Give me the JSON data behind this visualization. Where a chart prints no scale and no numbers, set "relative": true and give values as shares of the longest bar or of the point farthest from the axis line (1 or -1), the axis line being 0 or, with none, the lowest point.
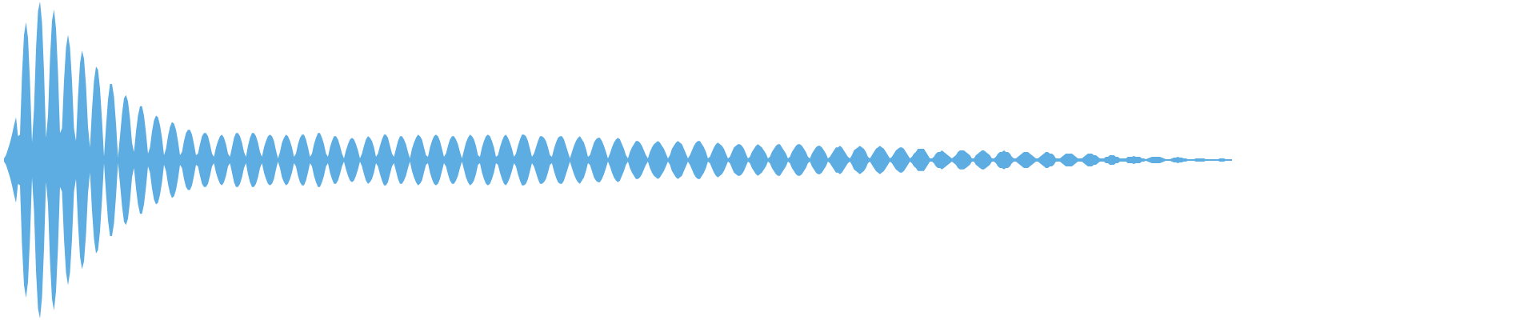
{
  "chart_data": {
    "type": "area",
    "relative": true,
    "tick_labels": false,
    "categories": [
      null,
      null,
      null,
      null,
      null,
      null,
      null,
      null,
      null,
      null,
      null,
      null,
      null,
      null,
      null,
      null,
      null,
      null,
      null,
      null,
      null,
      null,
      null,
      null,
      null,
      null,
      null,
      null,
      null,
      null,
      null,
      null,
      null,
      null,
      null,
      null,
      null,
      null,
      null,
      null,
      null,
      null,
      null,
      null,
      null,
      null,
      null,
      null,
      null,
      null,
      null,
      null,
      null,
      null,
      null,
      null,
      null,
      null,
      null,
      null,
      null,
      null,
      null,
      null,
      null,
      null,
      null,
      null,
      null,
      null,
      null,
      null,
      null,
      null,
      null,
      null,
      null,
      null,
      null,
      null,
      null,
      null,
      null,
      null,
      null,
      null,
      null,
      null,
      null,
      null,
      null,
      null,
      null,
      null,
      null,
      null,
      null,
      null,
      null,
      null,
      null,
      null,
      null,
      null,
      null,
      null,
      null,
      null,
      null,
      null,
      null,
      null,
      null,
      null,
      null,
      null,
      null,
      null,
      null,
      null,
      null,
      null,
      null,
      null,
      null,
      null,
      null,
      null,
      null,
      null,
      null,
      null,
      null,
      null,
      null,
      null,
      null,
      null,
      null,
      null,
      null,
      null,
      null,
      null,
      null,
      null,
      null,
      null,
      null,
      null,
      null,
      null,
      null,
      null,
      null,
      null,
      null,
      null,
      null,
      null,
      null,
      null,
      null,
      null,
      null,
      null,
      null,
      null,
      null,
      null,
      null,
      null,
      null,
      null,
      null,
      null,
      null,
      null,
      null,
      null,
      null,
      null,
      null,
      null,
      null,
      null,
      null,
      null,
      null,
      null,
      null,
      null,
      null,
      null,
      null,
      null,
      null,
      null,
      null,
      null,
      null,
      null,
      null,
      null,
      null,
      null,
      null,
      null,
      null,
      null,
      null,
      null,
      null,
      null,
      null,
      null,
      null,
      null,
      null,
      null,
      null,
      null,
      null,
      null,
      null,
      null,
      null,
      null,
      null,
      null,
      null,
      null,
      null,
      null,
      null,
      null,
      null,
      null,
      null,
      null,
      null,
      null,
      null,
      null,
      null,
      null,
      null,
      null,
      null,
      null,
      null,
      null,
      null,
      null,
      null,
      null,
      null,
      null,
      null,
      null,
      null,
      null,
      null,
      null,
      null,
      null,
      null,
      null,
      null,
      null,
      null,
      null,
      null,
      null,
      null,
      null,
      null,
      null,
      null,
      null,
      null,
      null,
      null,
      null,
      null,
      null,
      null,
      null,
      null,
      null,
      null,
      null,
      null,
      null,
      null,
      null,
      null,
      null,
      null,
      null,
      null,
      null,
      null,
      null,
      null,
      null,
      null,
      null,
      null,
      null,
      null,
      null,
      null,
      null,
      null,
      null,
      null,
      null,
      null,
      null,
      null,
      null,
      null,
      null,
      null,
      null,
      null,
      null,
      null,
      null,
      null,
      null,
      null,
      null,
      null,
      null,
      null,
      null,
      null,
      null,
      null,
      null,
      null,
      null,
      null,
      null,
      null,
      null,
      null,
      null,
      null,
      null,
      null,
      null,
      null,
      null,
      null,
      null,
      null,
      null,
      null,
      null,
      null,
      null,
      null,
      null,
      null,
      null,
      null,
      null,
      null,
      null,
      null,
      null,
      null,
      null,
      null,
      null,
      null,
      null,
      null,
      null,
      null,
      null,
      null,
      null,
      null,
      null,
      null,
      null,
      null,
      null,
      null,
      null,
      null,
      null,
      null,
      null,
      null,
      null,
      null,
      null,
      null,
      null,
      null,
      null,
      null,
      null,
      null,
      null,
      null,
      null,
      null,
      null,
      null,
      null,
      null,
      null,
      null,
      null,
      null,
      null,
      null,
      null,
      null,
      null,
      null,
      null,
      null,
      null,
      null,
      null,
      null,
      null,
      null,
      null,
      null,
      null,
      null,
      null,
      null,
      null,
      null,
      null,
      null,
      null,
      null,
      null,
      null,
      null,
      null,
      null,
      null,
      null,
      null,
      null,
      null,
      null,
      null,
      null,
      null,
      null,
      null,
      null,
      null,
      null,
      null,
      null,
      null,
      null,
      null,
      null,
      null,
      null,
      null,
      null,
      null,
      null,
      null,
      null,
      null,
      null,
      null,
      null,
      null,
      null,
      null,
      null,
      null,
      null,
      null,
      null,
      null,
      null,
      null,
      null,
      null,
      null,
      null,
      null,
      null,
      null,
      null,
      null,
      null,
      null,
      null,
      null,
      null,
      null,
      null,
      null,
      null,
      null,
      null,
      null,
      null,
      null,
      null,
      null,
      null,
      null,
      null,
      null,
      null,
      null,
      null,
      null,
      null,
      null,
      null,
      null,
      null,
      null,
      null,
      null,
      null,
      null,
      null,
      null,
      null,
      null,
      null,
      null,
      null,
      null,
      null,
      null,
      null,
      null,
      null,
      null,
      null,
      null,
      null,
      null,
      null,
      null,
      null,
      null,
      null,
      null,
      null,
      null,
      null,
      null,
      null,
      null,
      null,
      null,
      null,
      null,
      null,
      null,
      null,
      null,
      null,
      null,
      null,
      null,
      null,
      null,
      null,
      null,
      null,
      null,
      null,
      null,
      null,
      null,
      null,
      null,
      null,
      null,
      null,
      null,
      null,
      null,
      null,
      null,
      null,
      null,
      null,
      null,
      null,
      null,
      null,
      null,
      null,
      null,
      null,
      null,
      null,
      null,
      null
    ],
    "series": [
      {
        "color": "#5dade2",
        "values": [
          0.01,
          0.03,
          0.07,
          0.11,
          0.16,
          0.22,
          0.27,
          0.15,
          0.16,
          0.54,
          0.79,
          0.87,
          0.77,
          0.49,
          0.11,
          0.32,
          0.7,
          0.94,
          1,
          0.87,
          0.56,
          0.14,
          0.28,
          0.64,
          0.88,
          0.95,
          0.83,
          0.55,
          0.17,
          0.2,
          0.5,
          0.71,
          0.79,
          0.71,
          0.5,
          0.2,
          0.12,
          0.4,
          0.61,
          0.69,
          0.64,
          0.47,
          0.21,
          0.08,
          0.32,
          0.5,
          0.59,
          0.57,
          0.45,
          0.25,
          0.02,
          0.21,
          0.38,
          0.48,
          0.48,
          0.4,
          0.23,
          0.02,
          0.15,
          0.29,
          0.39,
          0.41,
          0.37,
          0.26,
          0.11,
          0.05,
          0.18,
          0.28,
          0.34,
          0.34,
          0.28,
          0.17,
          0.04,
          0.08,
          0.18,
          0.25,
          0.28,
          0.27,
          0.22,
          0.14,
          0.03,
          0.07,
          0.15,
          0.21,
          0.24,
          0.23,
          0.19,
          0.12,
          0.03,
          0.05,
          0.12,
          0.17,
          0.19,
          0.19,
          0.16,
          0.1,
          0.03,
          0.04,
          0.1,
          0.15,
          0.17,
          0.17,
          0.15,
          0.1,
          0.04,
          0.02,
          0.08,
          0.12,
          0.15,
          0.16,
          0.14,
          0.1,
          0.04,
          0.02,
          0.08,
          0.14,
          0.17,
          0.17,
          0.15,
          0.11,
          0.05,
          0.02,
          0.09,
          0.14,
          0.17,
          0.17,
          0.15,
          0.11,
          0.05,
          0.02,
          0.08,
          0.12,
          0.15,
          0.16,
          0.15,
          0.12,
          0.06,
          0.01,
          0.05,
          0.11,
          0.14,
          0.16,
          0.15,
          0.12,
          0.08,
          0.02,
          0.04,
          0.1,
          0.14,
          0.16,
          0.16,
          0.13,
          0.08,
          0.02,
          0.04,
          0.1,
          0.14,
          0.17,
          0.17,
          0.14,
          0.1,
          0.04,
          0.02,
          0.08,
          0.12,
          0.15,
          0.15,
          0.13,
          0.09,
          0.04,
          0.01,
          0.06,
          0.1,
          0.13,
          0.14,
          0.13,
          0.1,
          0.06,
          0.01,
          0.04,
          0.09,
          0.13,
          0.15,
          0.14,
          0.12,
          0.08,
          0.02,
          0.04,
          0.09,
          0.13,
          0.16,
          0.16,
          0.14,
          0.09,
          0.04,
          0.02,
          0.07,
          0.12,
          0.15,
          0.15,
          0.13,
          0.1,
          0.05,
          0.01,
          0.07,
          0.11,
          0.14,
          0.16,
          0.15,
          0.13,
          0.08,
          0.03,
          0.02,
          0.08,
          0.12,
          0.15,
          0.16,
          0.15,
          0.12,
          0.07,
          0.02,
          0.04,
          0.09,
          0.13,
          0.15,
          0.15,
          0.13,
          0.1,
          0.05,
          0.01,
          0.06,
          0.11,
          0.14,
          0.16,
          0.15,
          0.13,
          0.09,
          0.03,
          0.02,
          0.08,
          0.12,
          0.15,
          0.16,
          0.15,
          0.12,
          0.08,
          0.02,
          0.03,
          0.08,
          0.12,
          0.15,
          0.16,
          0.14,
          0.11,
          0.07,
          0.02,
          0.04,
          0.09,
          0.13,
          0.16,
          0.16,
          0.15,
          0.12,
          0.07,
          0.02,
          0.04,
          0.08,
          0.12,
          0.15,
          0.15,
          0.14,
          0.12,
          0.08,
          0.03,
          0.02,
          0.07,
          0.11,
          0.14,
          0.15,
          0.15,
          0.13,
          0.09,
          0.05,
          0.01,
          0.05,
          0.09,
          0.12,
          0.14,
          0.15,
          0.13,
          0.11,
          0.07,
          0.02,
          0.03,
          0.07,
          0.11,
          0.13,
          0.14,
          0.14,
          0.12,
          0.09,
          0.05,
          0.01,
          0.04,
          0.08,
          0.11,
          0.13,
          0.14,
          0.13,
          0.1,
          0.07,
          0.03,
          0.01,
          0.05,
          0.08,
          0.1,
          0.12,
          0.12,
          0.11,
          0.09,
          0.06,
          0.03,
          0.01,
          0.05,
          0.08,
          0.1,
          0.11,
          0.12,
          0.11,
          0.09,
          0.07,
          0.04,
          0.01,
          0.03,
          0.07,
          0.09,
          0.11,
          0.12,
          0.11,
          0.1,
          0.07,
          0.04,
          0.01,
          0.03,
          0.06,
          0.09,
          0.11,
          0.12,
          0.12,
          0.1,
          0.08,
          0.05,
          0.01,
          0.02,
          0.05,
          0.08,
          0.1,
          0.11,
          0.1,
          0.09,
          0.07,
          0.04,
          0.01,
          0.02,
          0.05,
          0.08,
          0.09,
          0.1,
          0.1,
          0.09,
          0.07,
          0.04,
          0.01,
          0.02,
          0.05,
          0.07,
          0.09,
          0.1,
          0.09,
          0.08,
          0.06,
          0.04,
          0.01,
          0.02,
          0.05,
          0.07,
          0.09,
          0.1,
          0.1,
          0.08,
          0.06,
          0.04,
          0.01,
          0.02,
          0.05,
          0.07,
          0.09,
          0.1,
          0.1,
          0.09,
          0.07,
          0.05,
          0.02,
          0.01,
          0.04,
          0.06,
          0.08,
          0.09,
          0.09,
          0.08,
          0.06,
          0.04,
          0.01,
          0.02,
          0.04,
          0.06,
          0.08,
          0.08,
          0.09,
          0.08,
          0.06,
          0.04,
          0.02,
          0.01,
          0.03,
          0.06,
          0.07,
          0.08,
          0.09,
          0.08,
          0.07,
          0.05,
          0.02,
          0.01,
          0.03,
          0.05,
          0.07,
          0.08,
          0.09,
          0.08,
          0.07,
          0.05,
          0.03,
          0.01,
          0.02,
          0.04,
          0.06,
          0.07,
          0.08,
          0.08,
          0.07,
          0.05,
          0.03,
          0.01,
          0.02,
          0.04,
          0.05,
          0.07,
          0.07,
          0.07,
          0.07,
          0.05,
          0.03,
          0.01,
          0.01,
          0.02,
          0.04,
          0.05,
          0.05,
          0.06,
          0.05,
          0.04,
          0.03,
          0.02,
          0.01,
          0.02,
          0.03,
          0.05,
          0.06,
          0.06,
          0.06,
          0.05,
          0.04,
          0.03,
          0.01,
          0.01,
          0.03,
          0.04,
          0.05,
          0.06,
          0.06,
          0.05,
          0.04,
          0.03,
          0.01,
          0.01,
          0.02,
          0.04,
          0.05,
          0.05,
          0.06,
          0.05,
          0.05,
          0.04,
          0.02,
          0.01,
          0.01,
          0.02,
          0.03,
          0.04,
          0.05,
          0.05,
          0.05,
          0.04,
          0.03,
          0.02,
          0.01,
          0.01,
          0.02,
          0.03,
          0.04,
          0.05,
          0.05,
          0.04,
          0.04,
          0.03,
          0.01,
          0.01,
          0.01,
          0.02,
          0.03,
          0.04,
          0.04,
          0.04,
          0.04,
          0.03,
          0.02,
          0.01,
          0.01,
          0.01,
          0.02,
          0.03,
          0.04,
          0.04,
          0.04,
          0.03,
          0.03,
          0.02,
          0.01,
          0.01,
          0.01,
          0.02,
          0.02,
          0.03,
          0.03,
          0.03,
          0.02,
          0.02,
          0.01,
          0.01,
          0.01,
          0.01,
          0.02,
          0.02,
          0.02,
          0.025,
          0.02,
          0.02,
          0.02,
          0.01,
          0.01,
          0.005,
          0.01,
          0.015,
          0.02,
          0.02,
          0.02,
          0.02,
          0.02,
          0.015,
          0.01,
          0.005,
          0.005,
          0.005,
          0.01,
          0.015,
          0.015,
          0.02,
          0.015,
          0.015,
          0.01,
          0.01,
          0.005,
          0.005,
          0.005,
          0.005,
          0.01,
          0.01,
          0.01,
          0.01,
          0.01,
          0.005,
          0.005,
          0.005,
          0.005,
          0.005,
          0.005,
          0.005,
          0.01,
          0.01,
          0.01,
          0.005,
          0.005,
          0.005,
          0.005
        ]
      },
      {
        "color": "#5dade2",
        "values": [
          -0.01,
          -0.03,
          -0.07,
          -0.11,
          -0.16,
          -0.22,
          -0.27,
          -0.15,
          -0.16,
          -0.54,
          -0.79,
          -0.87,
          -0.77,
          -0.49,
          -0.11,
          -0.32,
          -0.7,
          -0.94,
          -1,
          -0.87,
          -0.56,
          -0.14,
          -0.28,
          -0.64,
          -0.88,
          -0.95,
          -0.83,
          -0.55,
          -0.17,
          -0.2,
          -0.5,
          -0.71,
          -0.79,
          -0.71,
          -0.5,
          -0.2,
          -0.12,
          -0.4,
          -0.61,
          -0.69,
          -0.64,
          -0.47,
          -0.21,
          -0.08,
          -0.32,
          -0.5,
          -0.59,
          -0.57,
          -0.45,
          -0.25,
          -0.02,
          -0.21,
          -0.38,
          -0.48,
          -0.48,
          -0.4,
          -0.23,
          -0.02,
          -0.15,
          -0.29,
          -0.39,
          -0.41,
          -0.37,
          -0.26,
          -0.11,
          -0.05,
          -0.18,
          -0.28,
          -0.34,
          -0.34,
          -0.28,
          -0.17,
          -0.04,
          -0.08,
          -0.18,
          -0.25,
          -0.28,
          -0.27,
          -0.22,
          -0.14,
          -0.03,
          -0.07,
          -0.15,
          -0.21,
          -0.24,
          -0.23,
          -0.19,
          -0.12,
          -0.03,
          -0.05,
          -0.12,
          -0.17,
          -0.19,
          -0.19,
          -0.16,
          -0.1,
          -0.03,
          -0.04,
          -0.1,
          -0.15,
          -0.17,
          -0.17,
          -0.15,
          -0.1,
          -0.04,
          -0.02,
          -0.08,
          -0.12,
          -0.15,
          -0.16,
          -0.14,
          -0.1,
          -0.04,
          -0.02,
          -0.08,
          -0.14,
          -0.17,
          -0.17,
          -0.15,
          -0.11,
          -0.05,
          -0.02,
          -0.09,
          -0.14,
          -0.17,
          -0.17,
          -0.15,
          -0.11,
          -0.05,
          -0.02,
          -0.08,
          -0.12,
          -0.15,
          -0.16,
          -0.15,
          -0.12,
          -0.06,
          -0.01,
          -0.05,
          -0.11,
          -0.14,
          -0.16,
          -0.15,
          -0.12,
          -0.08,
          -0.02,
          -0.04,
          -0.1,
          -0.14,
          -0.16,
          -0.16,
          -0.13,
          -0.08,
          -0.02,
          -0.04,
          -0.1,
          -0.14,
          -0.17,
          -0.17,
          -0.14,
          -0.1,
          -0.04,
          -0.02,
          -0.08,
          -0.12,
          -0.15,
          -0.15,
          -0.13,
          -0.09,
          -0.04,
          -0.01,
          -0.06,
          -0.1,
          -0.13,
          -0.14,
          -0.13,
          -0.1,
          -0.06,
          -0.01,
          -0.04,
          -0.09,
          -0.13,
          -0.15,
          -0.14,
          -0.12,
          -0.08,
          -0.02,
          -0.04,
          -0.09,
          -0.13,
          -0.16,
          -0.16,
          -0.14,
          -0.09,
          -0.04,
          -0.02,
          -0.07,
          -0.12,
          -0.15,
          -0.15,
          -0.13,
          -0.1,
          -0.05,
          -0.01,
          -0.07,
          -0.11,
          -0.14,
          -0.16,
          -0.15,
          -0.13,
          -0.08,
          -0.03,
          -0.02,
          -0.08,
          -0.12,
          -0.15,
          -0.16,
          -0.15,
          -0.12,
          -0.07,
          -0.02,
          -0.04,
          -0.09,
          -0.13,
          -0.15,
          -0.15,
          -0.13,
          -0.1,
          -0.05,
          -0.01,
          -0.06,
          -0.11,
          -0.14,
          -0.16,
          -0.15,
          -0.13,
          -0.09,
          -0.03,
          -0.02,
          -0.08,
          -0.12,
          -0.15,
          -0.16,
          -0.15,
          -0.12,
          -0.08,
          -0.02,
          -0.03,
          -0.08,
          -0.12,
          -0.15,
          -0.16,
          -0.14,
          -0.11,
          -0.07,
          -0.02,
          -0.04,
          -0.09,
          -0.13,
          -0.16,
          -0.16,
          -0.15,
          -0.12,
          -0.07,
          -0.02,
          -0.04,
          -0.08,
          -0.12,
          -0.15,
          -0.15,
          -0.14,
          -0.12,
          -0.08,
          -0.03,
          -0.02,
          -0.07,
          -0.11,
          -0.14,
          -0.15,
          -0.15,
          -0.13,
          -0.09,
          -0.05,
          -0.01,
          -0.05,
          -0.09,
          -0.12,
          -0.14,
          -0.15,
          -0.13,
          -0.11,
          -0.07,
          -0.02,
          -0.03,
          -0.07,
          -0.11,
          -0.13,
          -0.14,
          -0.14,
          -0.12,
          -0.09,
          -0.05,
          -0.01,
          -0.04,
          -0.08,
          -0.11,
          -0.13,
          -0.14,
          -0.13,
          -0.1,
          -0.07,
          -0.03,
          -0.01,
          -0.05,
          -0.08,
          -0.1,
          -0.12,
          -0.12,
          -0.11,
          -0.09,
          -0.06,
          -0.03,
          -0.01,
          -0.05,
          -0.08,
          -0.1,
          -0.11,
          -0.12,
          -0.11,
          -0.09,
          -0.07,
          -0.04,
          -0.01,
          -0.03,
          -0.07,
          -0.09,
          -0.11,
          -0.12,
          -0.11,
          -0.1,
          -0.07,
          -0.04,
          -0.01,
          -0.03,
          -0.06,
          -0.09,
          -0.11,
          -0.12,
          -0.12,
          -0.1,
          -0.08,
          -0.05,
          -0.01,
          -0.02,
          -0.05,
          -0.08,
          -0.1,
          -0.11,
          -0.1,
          -0.09,
          -0.07,
          -0.04,
          -0.01,
          -0.02,
          -0.05,
          -0.08,
          -0.09,
          -0.1,
          -0.1,
          -0.09,
          -0.07,
          -0.04,
          -0.01,
          -0.02,
          -0.05,
          -0.07,
          -0.09,
          -0.1,
          -0.09,
          -0.08,
          -0.06,
          -0.04,
          -0.01,
          -0.02,
          -0.05,
          -0.07,
          -0.09,
          -0.1,
          -0.1,
          -0.08,
          -0.06,
          -0.04,
          -0.01,
          -0.02,
          -0.05,
          -0.07,
          -0.09,
          -0.1,
          -0.1,
          -0.09,
          -0.07,
          -0.05,
          -0.02,
          -0.01,
          -0.04,
          -0.06,
          -0.08,
          -0.09,
          -0.09,
          -0.08,
          -0.06,
          -0.04,
          -0.01,
          -0.02,
          -0.04,
          -0.06,
          -0.08,
          -0.08,
          -0.09,
          -0.08,
          -0.06,
          -0.04,
          -0.02,
          -0.01,
          -0.03,
          -0.06,
          -0.07,
          -0.08,
          -0.09,
          -0.08,
          -0.07,
          -0.05,
          -0.02,
          -0.01,
          -0.03,
          -0.05,
          -0.07,
          -0.08,
          -0.09,
          -0.08,
          -0.07,
          -0.05,
          -0.03,
          -0.01,
          -0.02,
          -0.04,
          -0.06,
          -0.07,
          -0.08,
          -0.08,
          -0.07,
          -0.05,
          -0.03,
          -0.01,
          -0.02,
          -0.04,
          -0.05,
          -0.07,
          -0.07,
          -0.07,
          -0.07,
          -0.05,
          -0.03,
          -0.01,
          -0.01,
          -0.02,
          -0.04,
          -0.05,
          -0.05,
          -0.06,
          -0.05,
          -0.04,
          -0.03,
          -0.02,
          -0.01,
          -0.02,
          -0.03,
          -0.05,
          -0.06,
          -0.06,
          -0.06,
          -0.05,
          -0.04,
          -0.03,
          -0.01,
          -0.01,
          -0.03,
          -0.04,
          -0.05,
          -0.06,
          -0.06,
          -0.05,
          -0.04,
          -0.03,
          -0.01,
          -0.01,
          -0.02,
          -0.04,
          -0.05,
          -0.05,
          -0.06,
          -0.05,
          -0.05,
          -0.04,
          -0.02,
          -0.01,
          -0.01,
          -0.02,
          -0.03,
          -0.04,
          -0.05,
          -0.05,
          -0.05,
          -0.04,
          -0.03,
          -0.02,
          -0.01,
          -0.01,
          -0.02,
          -0.03,
          -0.04,
          -0.05,
          -0.05,
          -0.04,
          -0.04,
          -0.03,
          -0.01,
          -0.01,
          -0.01,
          -0.02,
          -0.03,
          -0.04,
          -0.04,
          -0.04,
          -0.04,
          -0.03,
          -0.02,
          -0.01,
          -0.01,
          -0.01,
          -0.02,
          -0.03,
          -0.04,
          -0.04,
          -0.04,
          -0.03,
          -0.03,
          -0.02,
          -0.01,
          -0.01,
          -0.01,
          -0.02,
          -0.02,
          -0.03,
          -0.03,
          -0.03,
          -0.02,
          -0.02,
          -0.01,
          -0.01,
          -0.01,
          -0.01,
          -0.02,
          -0.02,
          -0.02,
          -0.025,
          -0.02,
          -0.02,
          -0.02,
          -0.01,
          -0.01,
          -0.005,
          -0.01,
          -0.015,
          -0.02,
          -0.02,
          -0.02,
          -0.02,
          -0.02,
          -0.015,
          -0.01,
          -0.005,
          -0.005,
          -0.005,
          -0.01,
          -0.015,
          -0.015,
          -0.02,
          -0.015,
          -0.015,
          -0.01,
          -0.01,
          -0.005,
          -0.005,
          -0.005,
          -0.005,
          -0.01,
          -0.01,
          -0.01,
          -0.01,
          -0.01,
          -0.005,
          -0.005,
          -0.005,
          -0.005,
          -0.005,
          -0.005,
          -0.005,
          -0.01,
          -0.01,
          -0.01,
          -0.005,
          -0.005,
          -0.005,
          -0.005
        ]
      }
    ]
  }
}
